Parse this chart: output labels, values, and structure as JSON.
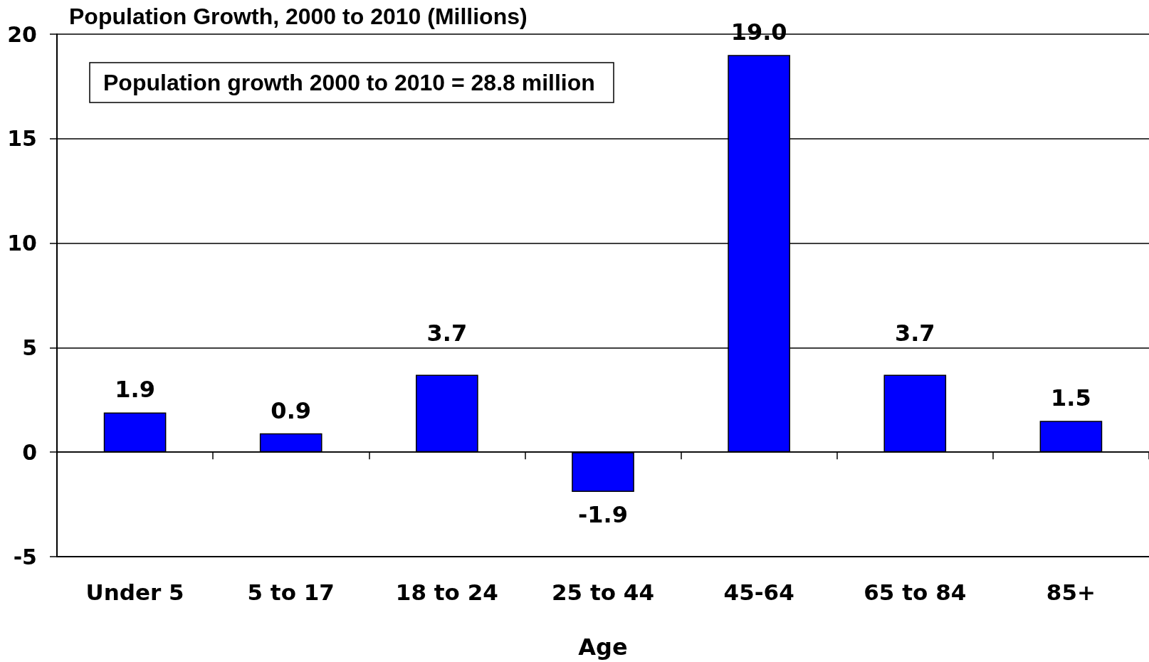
{
  "chart_data": {
    "type": "bar",
    "title": "Population Growth, 2000 to 2010 (Millions)",
    "xlabel": "Age",
    "categories": [
      "Under 5",
      "5 to 17",
      "18 to 24",
      "25 to 44",
      "45-64",
      "65 to 84",
      "85+"
    ],
    "values": [
      1.9,
      0.9,
      3.7,
      -1.9,
      19.0,
      3.7,
      1.5
    ],
    "value_labels": [
      "1.9",
      "0.9",
      "3.7",
      "-1.9",
      "19.0",
      "3.7",
      "1.5"
    ],
    "color": "#0000ff",
    "ylim": [
      -5,
      20
    ],
    "yticks": [
      -5,
      0,
      5,
      10,
      15,
      20
    ],
    "grid": "y",
    "annotations": [
      "Population growth 2000 to 2010 = 28.8 million"
    ]
  }
}
